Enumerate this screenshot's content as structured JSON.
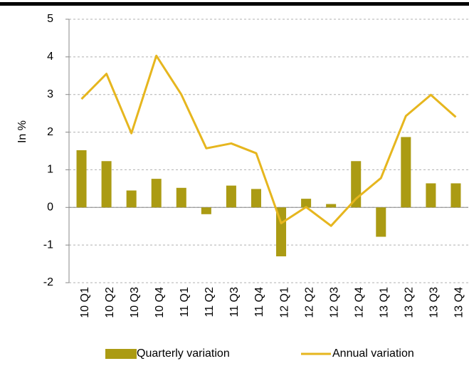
{
  "chart_data": {
    "type": "combo",
    "ylabel": "In %",
    "categories": [
      "10 Q1",
      "10 Q2",
      "10 Q3",
      "10 Q4",
      "11 Q1",
      "11 Q2",
      "11 Q3",
      "11 Q4",
      "12 Q1",
      "12 Q2",
      "12 Q3",
      "12 Q4",
      "13 Q1",
      "13 Q2",
      "13 Q3",
      "13 Q4"
    ],
    "series": [
      {
        "name": "Quarterly variation",
        "type": "bar",
        "color": "#ab9b13",
        "values": [
          1.52,
          1.23,
          0.45,
          0.76,
          0.52,
          -0.18,
          0.58,
          0.49,
          -1.3,
          0.23,
          0.09,
          1.23,
          -0.78,
          1.87,
          0.64,
          0.64
        ]
      },
      {
        "name": "Annual variation",
        "type": "line",
        "color": "#e6b61e",
        "values": [
          2.88,
          3.55,
          1.97,
          4.03,
          3.0,
          1.57,
          1.7,
          1.44,
          -0.42,
          0.01,
          -0.49,
          0.23,
          0.78,
          2.43,
          2.99,
          2.4
        ]
      }
    ],
    "ylim": [
      -2,
      5
    ],
    "yticks": [
      -2,
      -1,
      0,
      1,
      2,
      3,
      4,
      5
    ],
    "grid": true,
    "legend": "bottom"
  }
}
